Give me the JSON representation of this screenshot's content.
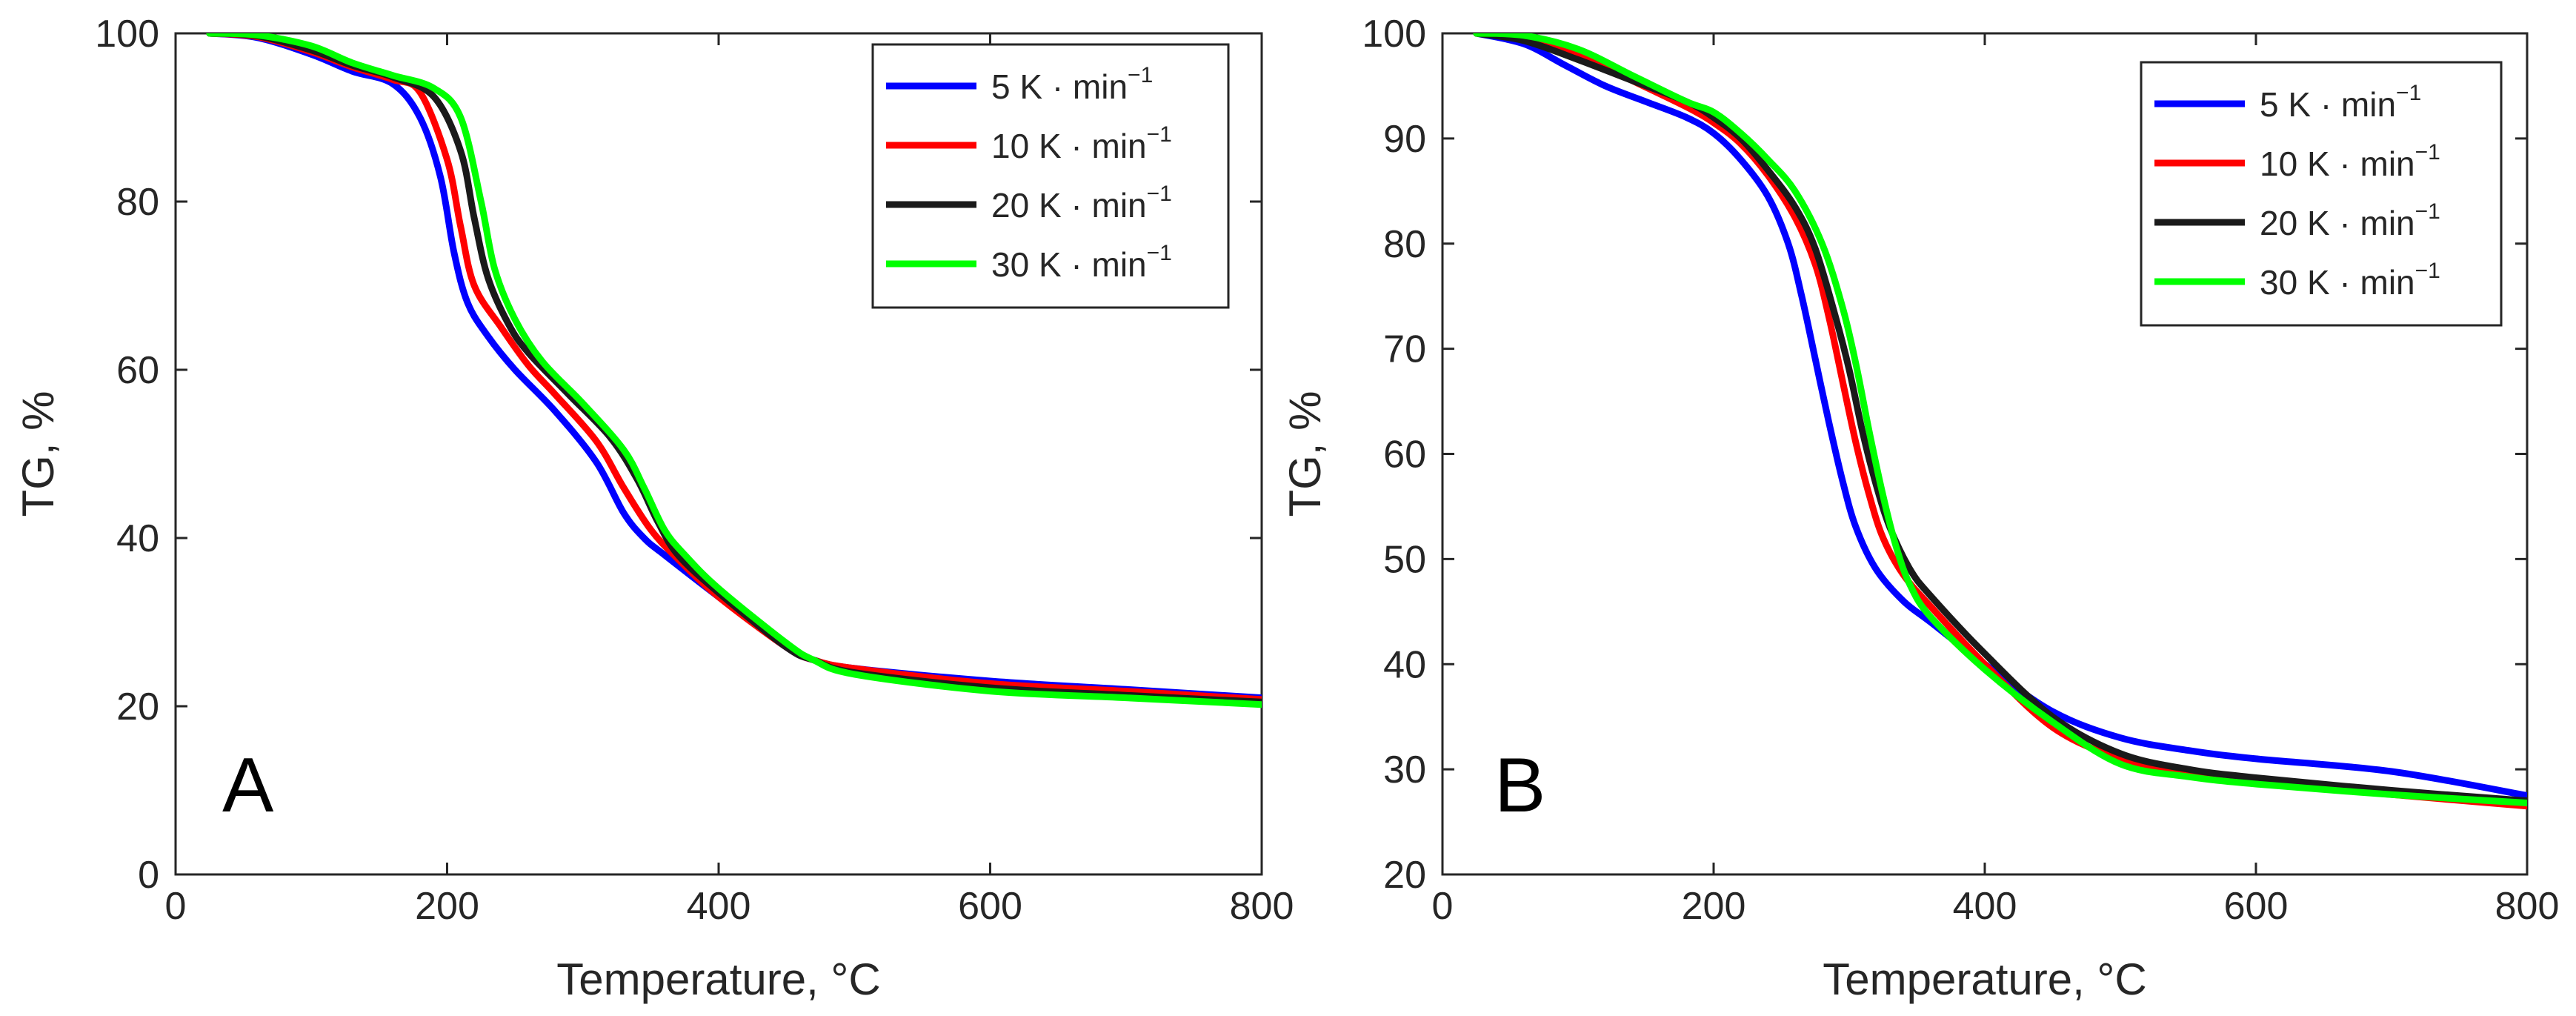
{
  "series_meta": [
    {
      "key": "5",
      "color": "#0000ff"
    },
    {
      "key": "10",
      "color": "#ff0000"
    },
    {
      "key": "20",
      "color": "#1a1a1a"
    },
    {
      "key": "30",
      "color": "#00ff00"
    }
  ],
  "chart_data": [
    {
      "type": "line",
      "panel_label": "A",
      "xlabel": "Temperature, °C",
      "ylabel": "TG, %",
      "xlim": [
        0,
        800
      ],
      "ylim": [
        0,
        100
      ],
      "xticks": [
        "0",
        "200",
        "400",
        "600",
        "800"
      ],
      "yticks": [
        "0",
        "20",
        "40",
        "60",
        "80",
        "100"
      ],
      "legend_position": "top-right",
      "series": [
        {
          "name": "5 K · min",
          "unit_exponent": "−1",
          "x": [
            25,
            60,
            100,
            130,
            160,
            180,
            195,
            205,
            215,
            230,
            250,
            280,
            310,
            330,
            345,
            360,
            400,
            450,
            470,
            500,
            600,
            700,
            800
          ],
          "values": [
            100,
            99.5,
            97.5,
            95.5,
            94,
            90,
            83,
            74,
            68,
            64,
            60,
            55,
            49,
            43,
            40,
            38,
            33,
            27,
            25.5,
            24.5,
            23,
            22,
            21
          ]
        },
        {
          "name": "10 K · min",
          "unit_exponent": "−1",
          "x": [
            25,
            60,
            100,
            130,
            160,
            180,
            200,
            210,
            220,
            240,
            260,
            280,
            310,
            330,
            350,
            370,
            400,
            450,
            470,
            500,
            600,
            700,
            800
          ],
          "values": [
            100,
            99.6,
            97.8,
            96,
            94.5,
            93,
            85,
            77,
            70,
            65,
            60.5,
            57,
            51.5,
            46,
            41,
            37.5,
            33,
            27,
            25.5,
            24.5,
            22.7,
            21.8,
            20.8
          ]
        },
        {
          "name": "20 K · min",
          "unit_exponent": "−1",
          "x": [
            25,
            60,
            100,
            130,
            160,
            190,
            210,
            220,
            230,
            245,
            260,
            290,
            320,
            340,
            355,
            370,
            400,
            450,
            470,
            500,
            600,
            700,
            800
          ],
          "values": [
            100,
            99.7,
            98,
            96.2,
            94.8,
            92.5,
            86,
            78,
            71,
            65.5,
            62,
            57,
            52,
            47,
            42,
            38,
            33.5,
            27,
            25.5,
            24,
            22.2,
            21.3,
            20.5
          ]
        },
        {
          "name": "30 K · min",
          "unit_exponent": "−1",
          "x": [
            25,
            60,
            100,
            130,
            160,
            190,
            210,
            225,
            235,
            250,
            270,
            300,
            330,
            345,
            360,
            375,
            400,
            450,
            470,
            500,
            600,
            700,
            800
          ],
          "values": [
            100,
            99.8,
            98.5,
            96.5,
            95,
            93.5,
            90,
            80,
            72,
            66,
            61,
            56,
            50.5,
            46,
            41,
            38,
            34,
            27.5,
            25.5,
            23.8,
            21.8,
            21,
            20.2
          ]
        }
      ]
    },
    {
      "type": "line",
      "panel_label": "B",
      "xlabel": "Temperature, °C",
      "ylabel": "TG, %",
      "xlim": [
        0,
        800
      ],
      "ylim": [
        20,
        100
      ],
      "xticks": [
        "0",
        "200",
        "400",
        "600",
        "800"
      ],
      "yticks": [
        "20",
        "30",
        "40",
        "50",
        "60",
        "70",
        "80",
        "90",
        "100"
      ],
      "legend_position": "top-right",
      "series": [
        {
          "name": "5 K · min",
          "unit_exponent": "−1",
          "x": [
            25,
            60,
            90,
            120,
            150,
            180,
            200,
            220,
            240,
            255,
            265,
            275,
            285,
            295,
            305,
            320,
            340,
            360,
            400,
            450,
            500,
            550,
            600,
            700,
            800
          ],
          "values": [
            100,
            99,
            97,
            95,
            93.5,
            92,
            90.5,
            88,
            84.5,
            80,
            75,
            69,
            63,
            57.5,
            53,
            49,
            46,
            44,
            40,
            35.5,
            33,
            31.8,
            31,
            29.8,
            27.5
          ]
        },
        {
          "name": "10 K · min",
          "unit_exponent": "−1",
          "x": [
            25,
            60,
            100,
            140,
            180,
            200,
            220,
            240,
            260,
            275,
            285,
            295,
            305,
            315,
            325,
            340,
            360,
            400,
            450,
            500,
            550,
            600,
            700,
            800
          ],
          "values": [
            100,
            99.5,
            98,
            95.5,
            93,
            91.5,
            89.5,
            86.5,
            82.5,
            78,
            73,
            67,
            61,
            56,
            52,
            48.5,
            45.5,
            40,
            34,
            31,
            29.5,
            28.8,
            27.6,
            26.5
          ]
        },
        {
          "name": "20 K · min",
          "unit_exponent": "−1",
          "x": [
            25,
            60,
            100,
            140,
            180,
            200,
            220,
            240,
            260,
            275,
            290,
            300,
            310,
            320,
            330,
            345,
            360,
            400,
            450,
            500,
            550,
            600,
            700,
            800
          ],
          "values": [
            100,
            99.3,
            97.5,
            95.5,
            93.5,
            92,
            90,
            87,
            83.5,
            79.5,
            73,
            68,
            62,
            57,
            53,
            49,
            46.5,
            41,
            35,
            31.5,
            30,
            29.2,
            28,
            27
          ]
        },
        {
          "name": "30 K · min",
          "unit_exponent": "−1",
          "x": [
            25,
            60,
            100,
            140,
            180,
            200,
            220,
            240,
            260,
            280,
            295,
            305,
            315,
            325,
            335,
            345,
            360,
            400,
            450,
            500,
            550,
            600,
            700,
            800
          ],
          "values": [
            100,
            99.8,
            98.5,
            96,
            93.5,
            92.5,
            90.5,
            88,
            85,
            80,
            74,
            68.5,
            62,
            56,
            51,
            47.5,
            44.5,
            39.5,
            34.5,
            30.5,
            29.3,
            28.6,
            27.6,
            26.8
          ]
        }
      ]
    }
  ]
}
